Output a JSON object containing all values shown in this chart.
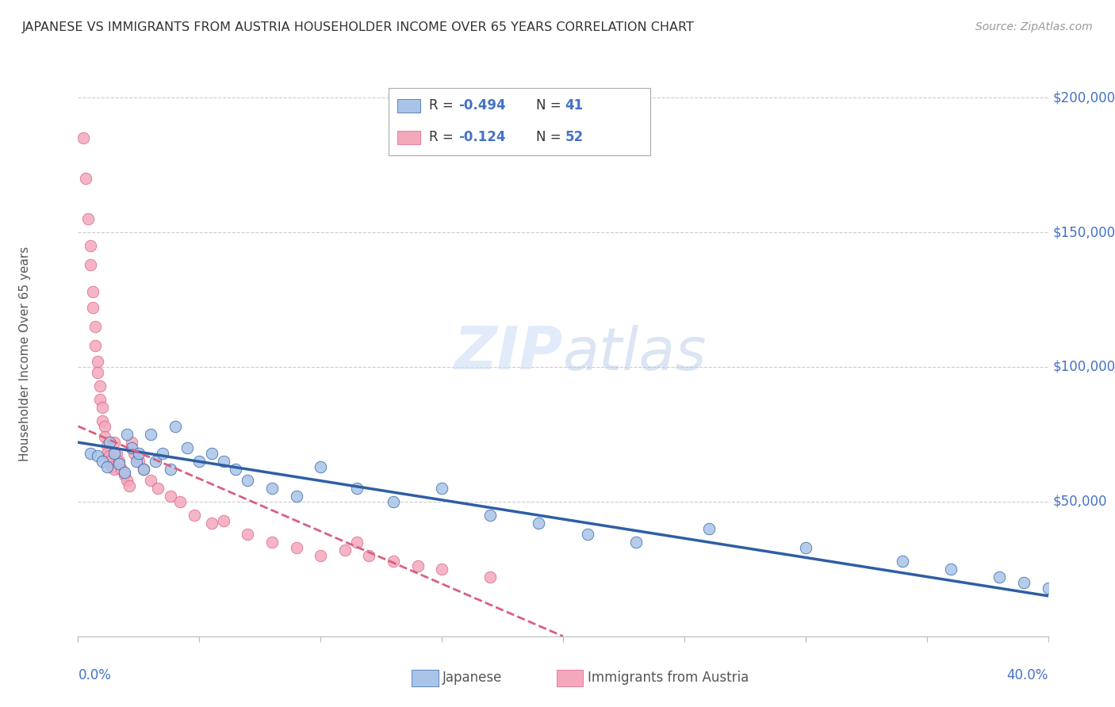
{
  "title": "JAPANESE VS IMMIGRANTS FROM AUSTRIA HOUSEHOLDER INCOME OVER 65 YEARS CORRELATION CHART",
  "source": "Source: ZipAtlas.com",
  "ylabel": "Householder Income Over 65 years",
  "xmin": 0.0,
  "xmax": 0.4,
  "ymin": 0,
  "ymax": 210000,
  "yticks": [
    0,
    50000,
    100000,
    150000,
    200000
  ],
  "ytick_labels": [
    "",
    "$50,000",
    "$100,000",
    "$150,000",
    "$200,000"
  ],
  "watermark_zip": "ZIP",
  "watermark_atlas": "atlas",
  "legend_R1": "-0.494",
  "legend_N1": "41",
  "legend_R2": "-0.124",
  "legend_N2": "52",
  "japanese_color": "#a8c4e8",
  "austria_color": "#f4a8bc",
  "japanese_line_color": "#2e5fa3",
  "austria_line_color": "#d96080",
  "japanese_x": [
    0.005,
    0.008,
    0.01,
    0.012,
    0.013,
    0.015,
    0.017,
    0.019,
    0.02,
    0.022,
    0.024,
    0.025,
    0.027,
    0.03,
    0.032,
    0.035,
    0.038,
    0.04,
    0.045,
    0.05,
    0.055,
    0.06,
    0.065,
    0.07,
    0.08,
    0.09,
    0.1,
    0.115,
    0.13,
    0.15,
    0.17,
    0.19,
    0.21,
    0.23,
    0.26,
    0.3,
    0.34,
    0.36,
    0.38,
    0.39,
    0.4
  ],
  "japanese_y": [
    68000,
    67000,
    65000,
    63000,
    72000,
    68000,
    64000,
    61000,
    75000,
    70000,
    65000,
    68000,
    62000,
    75000,
    65000,
    68000,
    62000,
    78000,
    70000,
    65000,
    68000,
    65000,
    62000,
    58000,
    55000,
    52000,
    63000,
    55000,
    50000,
    55000,
    45000,
    42000,
    38000,
    35000,
    40000,
    33000,
    28000,
    25000,
    22000,
    20000,
    18000
  ],
  "austria_x": [
    0.002,
    0.003,
    0.004,
    0.005,
    0.005,
    0.006,
    0.006,
    0.007,
    0.007,
    0.008,
    0.008,
    0.009,
    0.009,
    0.01,
    0.01,
    0.011,
    0.011,
    0.012,
    0.012,
    0.013,
    0.013,
    0.014,
    0.015,
    0.015,
    0.016,
    0.017,
    0.018,
    0.019,
    0.02,
    0.021,
    0.022,
    0.023,
    0.025,
    0.027,
    0.03,
    0.033,
    0.038,
    0.042,
    0.048,
    0.055,
    0.06,
    0.07,
    0.08,
    0.09,
    0.1,
    0.11,
    0.115,
    0.12,
    0.13,
    0.14,
    0.15,
    0.17
  ],
  "austria_y": [
    185000,
    170000,
    155000,
    145000,
    138000,
    128000,
    122000,
    115000,
    108000,
    102000,
    98000,
    93000,
    88000,
    85000,
    80000,
    78000,
    74000,
    71000,
    68000,
    67000,
    65000,
    63000,
    62000,
    72000,
    68000,
    65000,
    62000,
    60000,
    58000,
    56000,
    72000,
    68000,
    65000,
    62000,
    58000,
    55000,
    52000,
    50000,
    45000,
    42000,
    43000,
    38000,
    35000,
    33000,
    30000,
    32000,
    35000,
    30000,
    28000,
    26000,
    25000,
    22000
  ],
  "background_color": "#ffffff",
  "grid_color": "#cccccc",
  "title_color": "#333333",
  "axis_label_color": "#4472c4"
}
